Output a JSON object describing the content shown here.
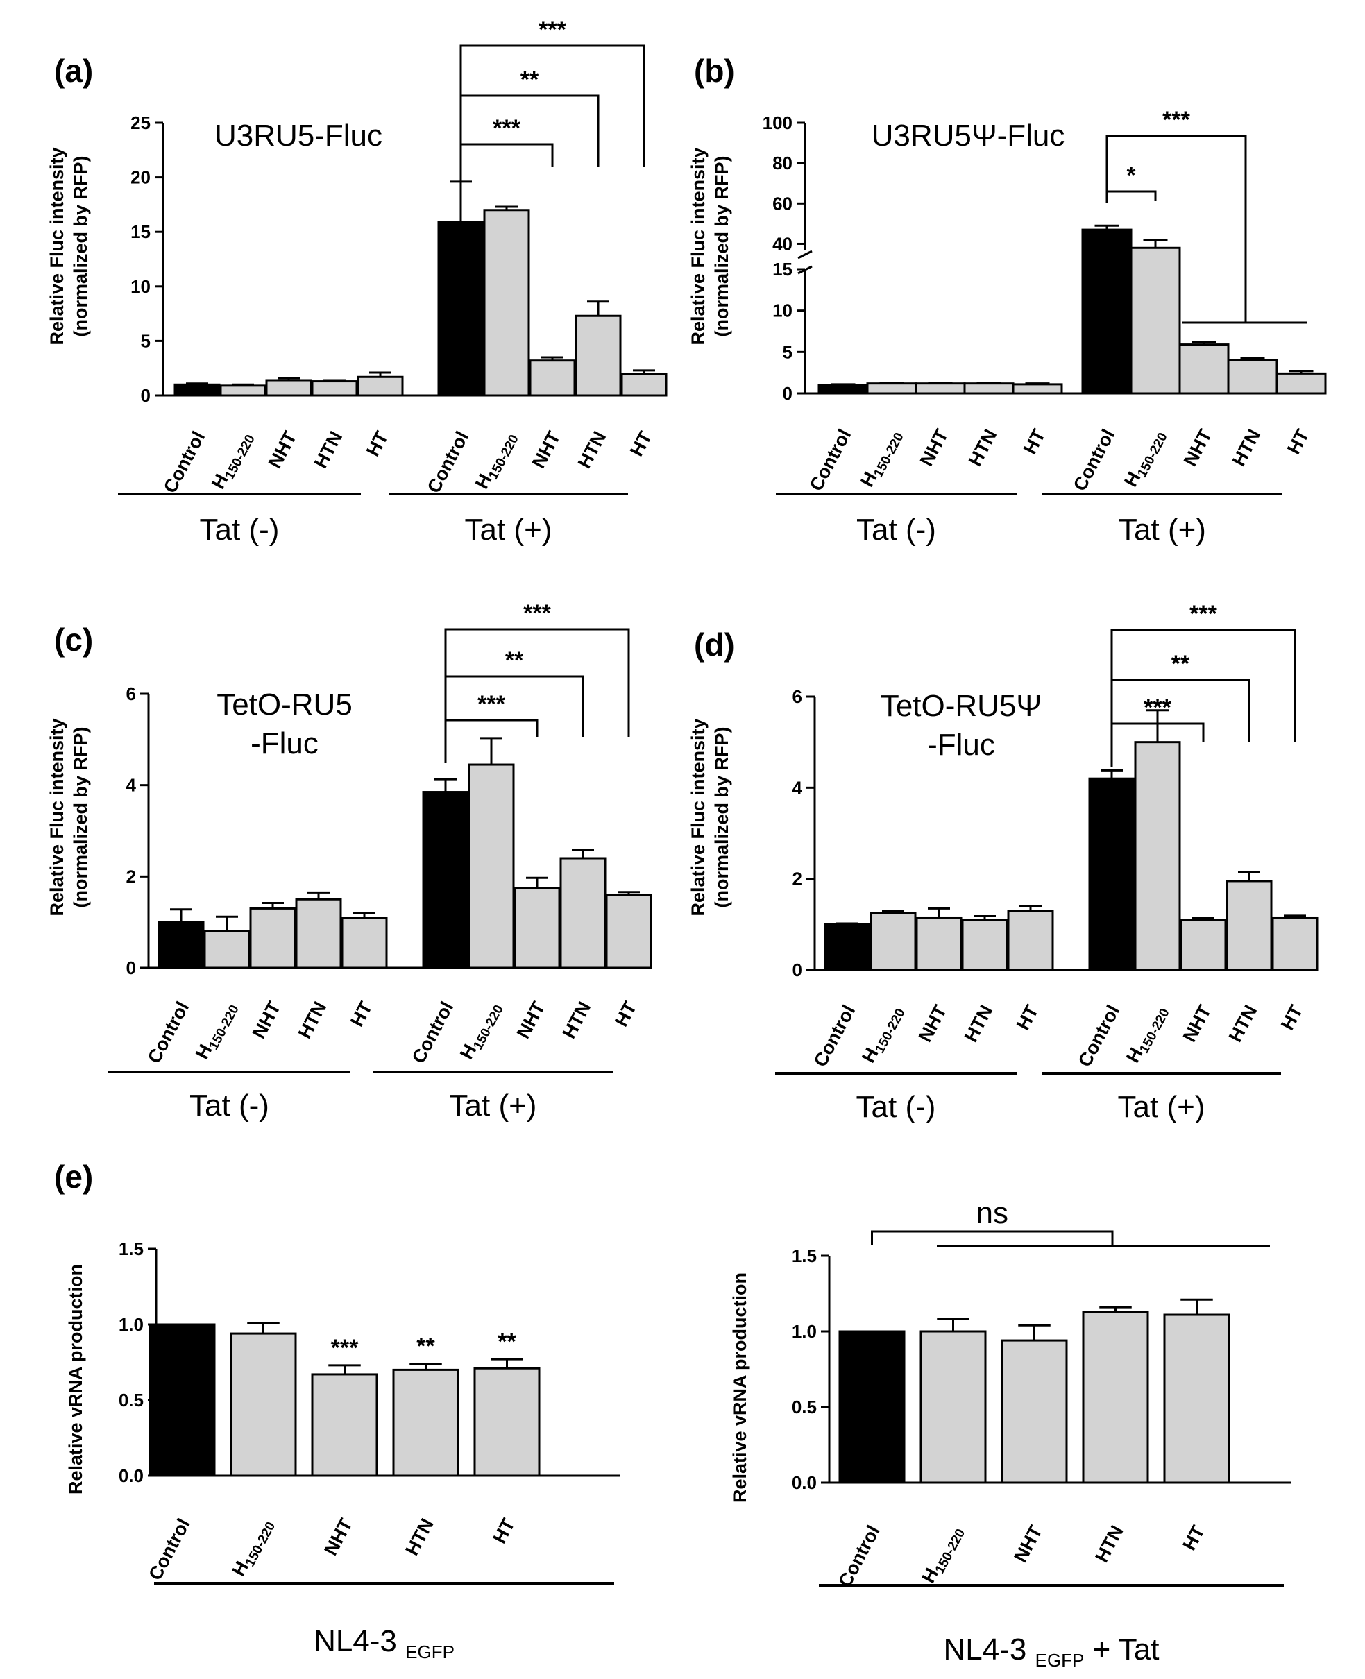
{
  "figure": {
    "colors": {
      "control": "#000000",
      "treatment": "#d3d3d3",
      "ink": "#000000"
    }
  },
  "chart_data": [
    {
      "panel": "(a)",
      "type": "bar",
      "title_lines": [
        "U3RU5-Fluc"
      ],
      "ylabel_lines": [
        "Relative Fluc intensity",
        "(normalized by RFP)"
      ],
      "ylim": [
        0,
        25
      ],
      "yticks": [
        "0",
        "5",
        "10",
        "15",
        "20",
        "25"
      ],
      "categories": [
        "Control",
        "H",
        "NHT",
        "HTN",
        "HT"
      ],
      "groups": [
        {
          "label": "Tat (-)",
          "values": [
            1.0,
            0.9,
            1.4,
            1.3,
            1.7
          ],
          "errors": [
            0.1,
            0.1,
            0.2,
            0.1,
            0.4
          ]
        },
        {
          "label": "Tat (+)",
          "values": [
            15.9,
            17.0,
            3.2,
            7.3,
            2.0
          ],
          "errors": [
            3.7,
            0.3,
            0.3,
            1.3,
            0.3
          ]
        }
      ],
      "significance": [
        {
          "label": "***",
          "to_category": "NHT"
        },
        {
          "label": "**",
          "to_category": "HTN"
        },
        {
          "label": "***",
          "to_category": "HT"
        }
      ]
    },
    {
      "panel": "(b)",
      "type": "bar",
      "title_lines": [
        "U3RU5Ψ-Fluc"
      ],
      "ylabel_lines": [
        "Relative Fluc intensity",
        "(normalized by RFP)"
      ],
      "ylim": [
        0,
        100
      ],
      "axis_break": [
        15,
        35
      ],
      "yticks": [
        "0",
        "5",
        "10",
        "15",
        "40",
        "60",
        "80",
        "100"
      ],
      "categories": [
        "Control",
        "H",
        "NHT",
        "HTN",
        "HT"
      ],
      "groups": [
        {
          "label": "Tat (-)",
          "values": [
            1.0,
            1.2,
            1.2,
            1.2,
            1.1
          ],
          "errors": [
            0.1,
            0.1,
            0.1,
            0.1,
            0.1
          ]
        },
        {
          "label": "Tat (+)",
          "values": [
            47.0,
            38.0,
            5.9,
            4.0,
            2.4
          ],
          "errors": [
            2.0,
            4.0,
            0.3,
            0.3,
            0.3
          ]
        }
      ],
      "significance": [
        {
          "label": "*",
          "to_category": "H"
        },
        {
          "label": "***",
          "to_category": "NHT, HTN, HT"
        }
      ]
    },
    {
      "panel": "(c)",
      "type": "bar",
      "title_lines": [
        "TetO-RU5",
        "-Fluc"
      ],
      "ylabel_lines": [
        "Relative Fluc intensity",
        "(normalized by RFP)"
      ],
      "ylim": [
        0,
        6
      ],
      "yticks": [
        "0",
        "2",
        "4",
        "6"
      ],
      "categories": [
        "Control",
        "H",
        "NHT",
        "HTN",
        "HT"
      ],
      "groups": [
        {
          "label": "Tat (-)",
          "values": [
            1.0,
            0.8,
            1.3,
            1.5,
            1.1
          ],
          "errors": [
            0.28,
            0.32,
            0.12,
            0.15,
            0.1
          ]
        },
        {
          "label": "Tat (+)",
          "values": [
            3.85,
            4.45,
            1.75,
            2.4,
            1.6
          ],
          "errors": [
            0.28,
            0.58,
            0.22,
            0.18,
            0.06
          ]
        }
      ],
      "significance": [
        {
          "label": "***",
          "to_category": "NHT"
        },
        {
          "label": "**",
          "to_category": "HTN"
        },
        {
          "label": "***",
          "to_category": "HT"
        }
      ]
    },
    {
      "panel": "(d)",
      "type": "bar",
      "title_lines": [
        "TetO-RU5Ψ",
        "-Fluc"
      ],
      "ylabel_lines": [
        "Relative Fluc intensity",
        "(normalized by RFP)"
      ],
      "ylim": [
        0,
        6
      ],
      "yticks": [
        "0",
        "2",
        "4",
        "6"
      ],
      "categories": [
        "Control",
        "H",
        "NHT",
        "HTN",
        "HT"
      ],
      "groups": [
        {
          "label": "Tat (-)",
          "values": [
            1.0,
            1.25,
            1.15,
            1.1,
            1.3
          ],
          "errors": [
            0.02,
            0.05,
            0.2,
            0.08,
            0.1
          ]
        },
        {
          "label": "Tat (+)",
          "values": [
            4.2,
            5.0,
            1.1,
            1.95,
            1.15
          ],
          "errors": [
            0.18,
            0.7,
            0.05,
            0.2,
            0.04
          ]
        }
      ],
      "significance": [
        {
          "label": "***",
          "to_category": "NHT"
        },
        {
          "label": "**",
          "to_category": "HTN"
        },
        {
          "label": "***",
          "to_category": "HT"
        }
      ]
    },
    {
      "panel": "(e)",
      "type": "bar",
      "title_lines": [],
      "ylabel_lines": [
        "Relative vRNA production"
      ],
      "ylim": [
        0,
        1.5
      ],
      "yticks": [
        "0.0",
        "0.5",
        "1.0",
        "1.5"
      ],
      "categories": [
        "Control",
        "H",
        "NHT",
        "HTN",
        "HT"
      ],
      "group_label": {
        "main": "NL4-3",
        "sub": "EGFP",
        "suffix": ""
      },
      "values": [
        1.0,
        0.94,
        0.67,
        0.7,
        0.71
      ],
      "errors": [
        0.0,
        0.07,
        0.06,
        0.04,
        0.06
      ],
      "bar_stars": [
        "",
        "",
        "***",
        "**",
        "**"
      ]
    },
    {
      "panel": "",
      "type": "bar",
      "title_lines": [],
      "ylabel_lines": [
        "Relative vRNA production"
      ],
      "ylim": [
        0,
        1.5
      ],
      "yticks": [
        "0.0",
        "0.5",
        "1.0",
        "1.5"
      ],
      "categories": [
        "Control",
        "H",
        "NHT",
        "HTN",
        "HT"
      ],
      "group_label": {
        "main": "NL4-3",
        "sub": "EGFP",
        "suffix": "+ Tat"
      },
      "values": [
        1.0,
        1.0,
        0.94,
        1.13,
        1.11
      ],
      "errors": [
        0.0,
        0.08,
        0.1,
        0.03,
        0.1
      ],
      "significance": [
        {
          "label": "ns",
          "to_category": "H150-220, NHT, HTN, HT"
        }
      ]
    }
  ],
  "subscripts": {
    "H": "150-220"
  }
}
